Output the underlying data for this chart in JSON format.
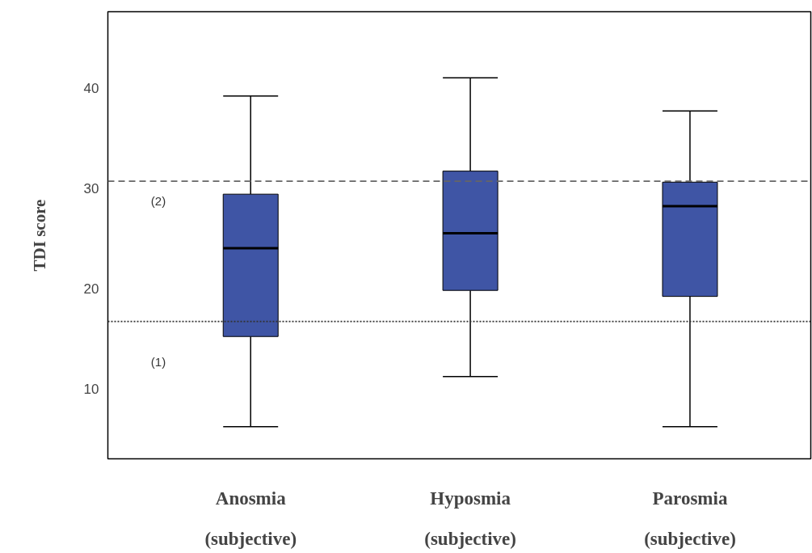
{
  "chart_data": {
    "type": "box",
    "ylabel": "TDI score",
    "categories": [
      "Anosmia\n(subjective)",
      "Hyposmia\n(subjective)",
      "Parosmia\n(subjective)"
    ],
    "boxes": [
      {
        "low": 6.2,
        "q1": 15.2,
        "median": 24.0,
        "q3": 29.4,
        "high": 39.2
      },
      {
        "low": 11.2,
        "q1": 19.8,
        "median": 25.5,
        "q3": 31.7,
        "high": 41.0
      },
      {
        "low": 6.2,
        "q1": 19.2,
        "median": 28.2,
        "q3": 30.6,
        "high": 37.7
      }
    ],
    "color": "#3f55a5",
    "ylim": [
      3,
      47.6
    ],
    "yticks": [
      10,
      20,
      30,
      40
    ],
    "grid": false,
    "ref_lines": [
      {
        "axis": "y",
        "value": 30.7,
        "line_style": "dashed",
        "color": "#666666"
      },
      {
        "axis": "y",
        "value": 16.7,
        "line_style": "dotted",
        "color": "#333333"
      }
    ],
    "annotations": [
      "(2)",
      "(1)"
    ]
  }
}
